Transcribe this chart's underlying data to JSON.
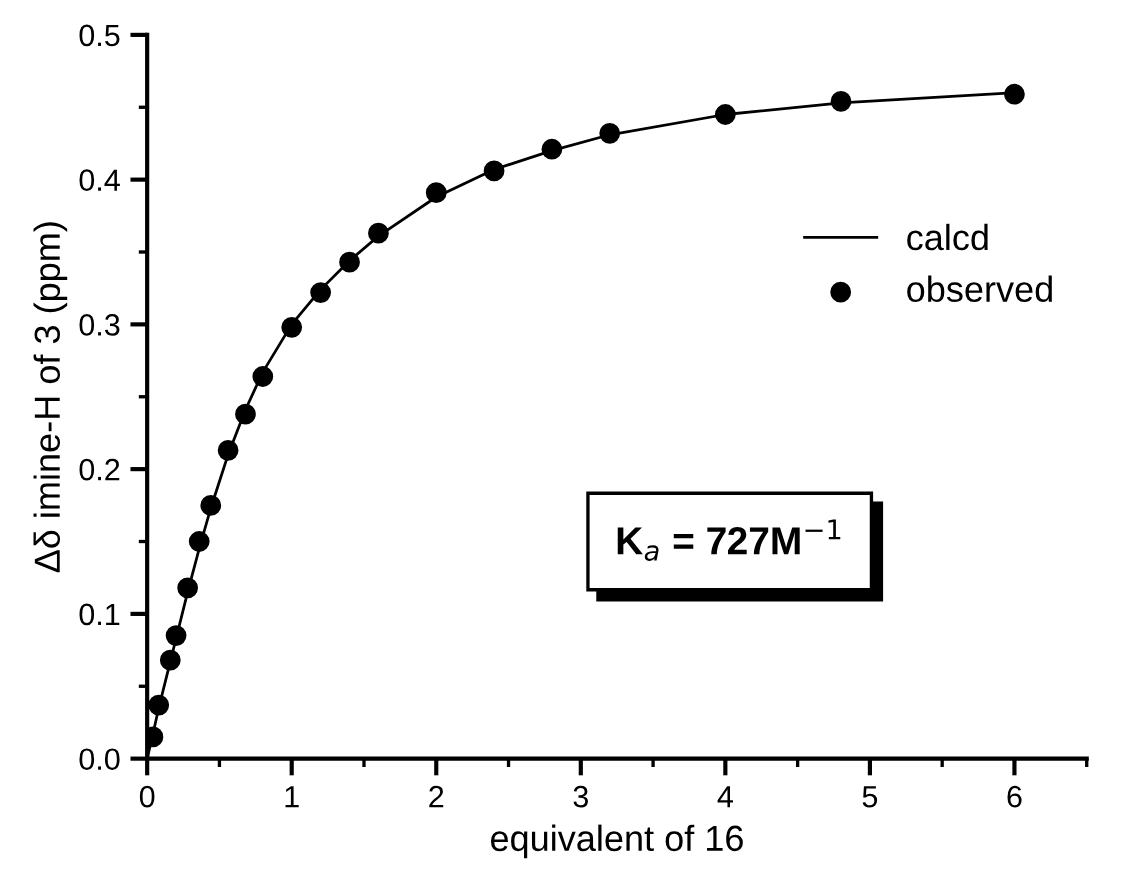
{
  "chart_data": {
    "type": "scatter",
    "xlabel": "equivalent of 16",
    "ylabel": "Δδ imine-H of 3 (ppm)",
    "series": [
      {
        "name": "calcd",
        "type": "line",
        "color": "#000000",
        "marker": "none",
        "line_style": "solid",
        "x": [
          0,
          0.04,
          0.08,
          0.16,
          0.2,
          0.28,
          0.36,
          0.44,
          0.56,
          0.68,
          0.8,
          1.0,
          1.2,
          1.4,
          1.6,
          2.0,
          2.4,
          2.8,
          3.2,
          4.0,
          4.8,
          6.0
        ],
        "values": [
          0,
          0.017,
          0.035,
          0.067,
          0.083,
          0.115,
          0.145,
          0.173,
          0.21,
          0.241,
          0.267,
          0.3,
          0.324,
          0.344,
          0.361,
          0.388,
          0.407,
          0.42,
          0.431,
          0.445,
          0.453,
          0.46
        ]
      },
      {
        "name": "observed",
        "color": "#000000",
        "marker": "circle",
        "x": [
          0.04,
          0.08,
          0.16,
          0.2,
          0.28,
          0.36,
          0.44,
          0.56,
          0.68,
          0.8,
          1.0,
          1.2,
          1.4,
          1.6,
          2.0,
          2.4,
          2.8,
          3.2,
          4.0,
          4.8,
          6.0
        ],
        "values": [
          0.015,
          0.037,
          0.068,
          0.085,
          0.118,
          0.15,
          0.175,
          0.213,
          0.238,
          0.264,
          0.298,
          0.322,
          0.343,
          0.363,
          0.391,
          0.406,
          0.421,
          0.432,
          0.445,
          0.454,
          0.459
        ]
      }
    ],
    "xlim": [
      0,
      6.5
    ],
    "ylim": [
      0,
      0.5
    ],
    "xticks": [
      0,
      {
        "value": 0.5,
        "label": null
      },
      1,
      {
        "value": 1.5,
        "label": null
      },
      2,
      {
        "value": 2.5,
        "label": null
      },
      3,
      {
        "value": 3.5,
        "label": null
      },
      4,
      {
        "value": 4.5,
        "label": null
      },
      5,
      {
        "value": 5.5,
        "label": null
      },
      6,
      {
        "value": 6.5,
        "label": null
      }
    ],
    "yticks": [
      {
        "value": 0,
        "label": "0.0"
      },
      {
        "value": 0.05,
        "label": null
      },
      0.1,
      {
        "value": 0.15,
        "label": null
      },
      0.2,
      {
        "value": 0.25,
        "label": null
      },
      0.3,
      {
        "value": 0.35,
        "label": null
      },
      0.4,
      {
        "value": 0.45,
        "label": null
      },
      0.5
    ],
    "annotations": [
      "K$_{a}$ = 727M$^{−1}$"
    ],
    "legend": "right",
    "grid": false
  }
}
